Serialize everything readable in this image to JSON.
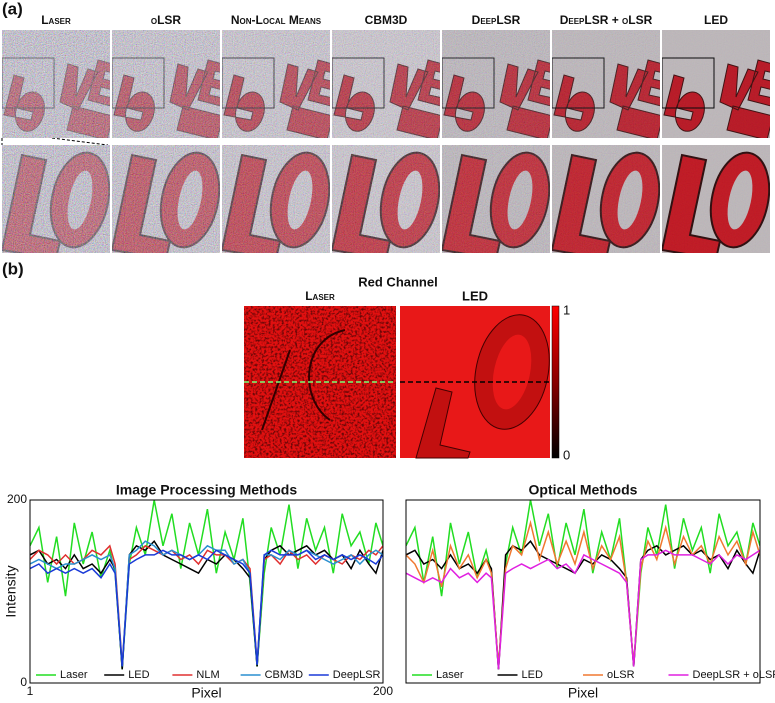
{
  "panel_a": {
    "label": "(a)",
    "titles": [
      "Laser",
      "oLSR",
      "Non-Local Means",
      "CBM3D",
      "DeepLSR",
      "DeepLSR + oLSR",
      "LED"
    ]
  },
  "panel_b": {
    "label": "(b)",
    "title": "Red Channel",
    "maps": [
      "Laser",
      "LED"
    ],
    "colorbar_ticks": [
      1,
      0
    ]
  },
  "chart_data": [
    {
      "type": "line",
      "title": "Image Processing Methods",
      "xlabel": "Pixel",
      "ylabel": "Intensity",
      "x": [
        1,
        6,
        11,
        16,
        21,
        26,
        31,
        36,
        41,
        46,
        49,
        53,
        57,
        61,
        66,
        71,
        76,
        81,
        86,
        91,
        96,
        101,
        106,
        111,
        116,
        121,
        125,
        129,
        133,
        137,
        142,
        147,
        152,
        157,
        162,
        167,
        172,
        177,
        182,
        187,
        192,
        196,
        200
      ],
      "xlim": [
        1,
        200
      ],
      "xticks": [
        1,
        200
      ],
      "ylim": [
        0,
        200
      ],
      "yticks": [
        0,
        200
      ],
      "series": [
        {
          "name": "Laser",
          "color": "#22dd22",
          "values": [
            150,
            170,
            110,
            160,
            95,
            175,
            130,
            165,
            115,
            145,
            120,
            15,
            130,
            170,
            140,
            200,
            150,
            185,
            125,
            175,
            140,
            190,
            120,
            165,
            135,
            180,
            110,
            18,
            120,
            170,
            140,
            195,
            125,
            180,
            145,
            170,
            120,
            185,
            150,
            165,
            130,
            175,
            150
          ]
        },
        {
          "name": "LED",
          "color": "#000000",
          "values": [
            140,
            145,
            130,
            135,
            125,
            140,
            125,
            130,
            120,
            135,
            125,
            15,
            140,
            150,
            145,
            155,
            140,
            135,
            130,
            125,
            120,
            135,
            130,
            140,
            135,
            125,
            115,
            18,
            135,
            145,
            150,
            140,
            145,
            150,
            140,
            145,
            135,
            140,
            125,
            145,
            130,
            120,
            145
          ]
        },
        {
          "name": "NLM",
          "color": "#e03030",
          "values": [
            135,
            145,
            140,
            130,
            140,
            130,
            135,
            145,
            140,
            150,
            130,
            20,
            135,
            140,
            150,
            145,
            140,
            145,
            135,
            140,
            130,
            145,
            140,
            140,
            130,
            135,
            125,
            22,
            135,
            140,
            130,
            145,
            135,
            140,
            130,
            140,
            135,
            130,
            140,
            135,
            145,
            140,
            150
          ]
        },
        {
          "name": "CBM3D",
          "color": "#2a8fd0",
          "values": [
            130,
            135,
            130,
            125,
            130,
            130,
            135,
            140,
            135,
            140,
            125,
            18,
            140,
            145,
            155,
            150,
            140,
            145,
            140,
            135,
            140,
            150,
            145,
            145,
            130,
            135,
            120,
            20,
            140,
            140,
            135,
            145,
            140,
            145,
            140,
            135,
            130,
            135,
            140,
            130,
            140,
            145,
            140
          ]
        },
        {
          "name": "DeepLSR",
          "color": "#1a3ad8",
          "values": [
            125,
            130,
            120,
            125,
            120,
            125,
            120,
            125,
            115,
            130,
            120,
            18,
            130,
            135,
            140,
            140,
            145,
            140,
            140,
            135,
            140,
            135,
            145,
            140,
            135,
            130,
            120,
            20,
            140,
            145,
            140,
            140,
            140,
            145,
            135,
            140,
            135,
            140,
            135,
            140,
            135,
            130,
            140
          ]
        }
      ]
    },
    {
      "type": "line",
      "title": "Optical Methods",
      "xlabel": "Pixel",
      "x": [
        1,
        6,
        11,
        16,
        21,
        26,
        31,
        36,
        41,
        46,
        49,
        53,
        57,
        61,
        66,
        71,
        76,
        81,
        86,
        91,
        96,
        101,
        106,
        111,
        116,
        121,
        125,
        129,
        133,
        137,
        142,
        147,
        152,
        157,
        162,
        167,
        172,
        177,
        182,
        187,
        192,
        196,
        200
      ],
      "xlim": [
        1,
        200
      ],
      "ylim": [
        0,
        200
      ],
      "series": [
        {
          "name": "Laser",
          "color": "#22dd22",
          "values": [
            150,
            170,
            110,
            160,
            95,
            175,
            130,
            165,
            115,
            145,
            120,
            15,
            130,
            170,
            140,
            200,
            150,
            185,
            125,
            175,
            140,
            190,
            120,
            165,
            135,
            180,
            110,
            18,
            120,
            170,
            140,
            195,
            125,
            180,
            145,
            170,
            120,
            185,
            150,
            165,
            130,
            175,
            150
          ]
        },
        {
          "name": "LED",
          "color": "#000000",
          "values": [
            140,
            145,
            130,
            135,
            125,
            140,
            125,
            130,
            120,
            135,
            125,
            15,
            140,
            150,
            145,
            155,
            140,
            135,
            130,
            125,
            120,
            135,
            130,
            140,
            135,
            125,
            115,
            18,
            135,
            145,
            150,
            140,
            145,
            150,
            140,
            145,
            135,
            140,
            125,
            145,
            130,
            120,
            145
          ]
        },
        {
          "name": "oLSR",
          "color": "#f07830",
          "values": [
            140,
            130,
            110,
            145,
            105,
            150,
            125,
            140,
            115,
            135,
            120,
            18,
            125,
            150,
            140,
            175,
            135,
            165,
            130,
            155,
            130,
            165,
            125,
            150,
            135,
            160,
            110,
            20,
            125,
            155,
            135,
            170,
            130,
            160,
            140,
            150,
            130,
            160,
            140,
            155,
            130,
            165,
            140
          ]
        },
        {
          "name": "DeepLSR + oLSR",
          "color": "#e020e0",
          "values": [
            120,
            115,
            110,
            115,
            110,
            125,
            115,
            120,
            110,
            120,
            115,
            15,
            120,
            125,
            130,
            125,
            130,
            135,
            125,
            130,
            120,
            140,
            135,
            130,
            125,
            120,
            110,
            18,
            135,
            140,
            140,
            145,
            140,
            140,
            140,
            135,
            130,
            140,
            130,
            140,
            135,
            140,
            145
          ]
        }
      ]
    }
  ]
}
